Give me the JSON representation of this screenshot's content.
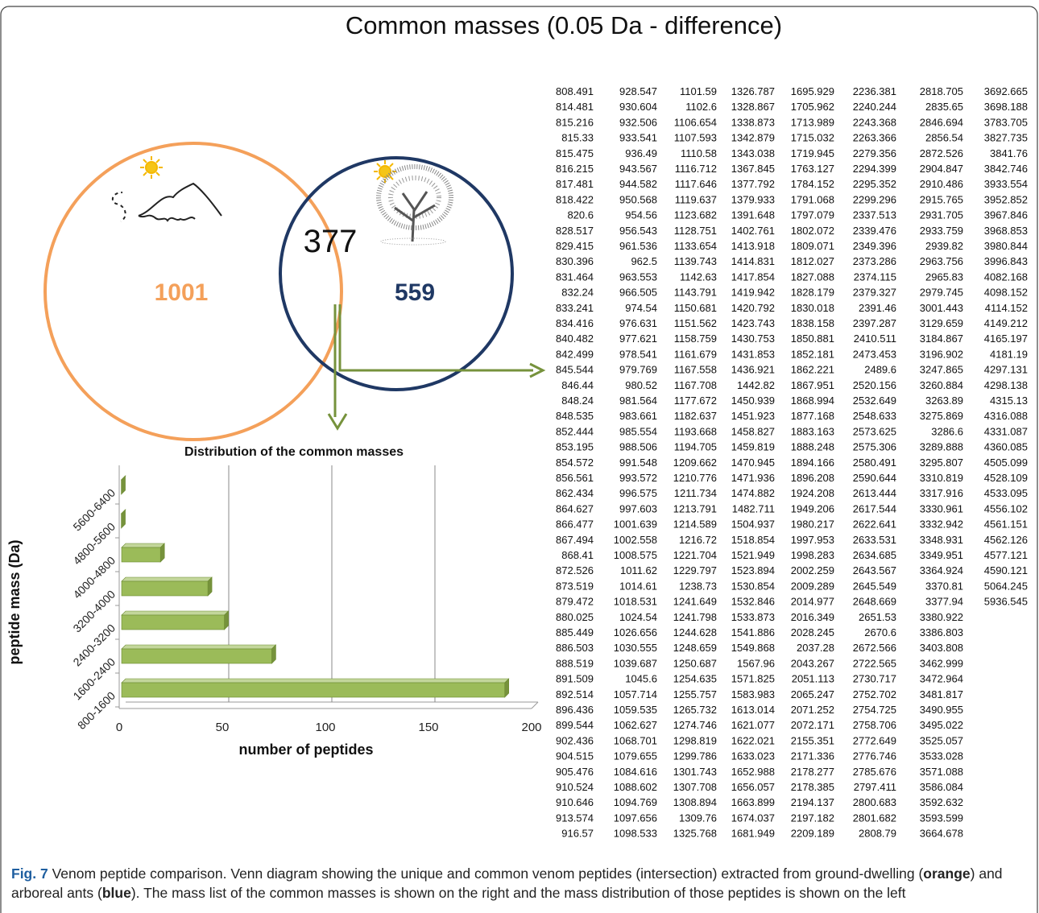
{
  "title": "Common masses (0.05 Da - difference)",
  "venn": {
    "left_count": 1001,
    "right_count": 559,
    "intersection_count": 377
  },
  "chart_data": {
    "type": "bar",
    "orientation": "horizontal",
    "title": "Distribution of the common masses",
    "x_label": "number of peptides",
    "y_label": "peptide mass (Da)",
    "categories": [
      "800-1600",
      "1600-2400",
      "2400-3200",
      "3200-4000",
      "4000-4800",
      "4800-5600",
      "5600-6400"
    ],
    "values": [
      187,
      74,
      51,
      43,
      20,
      1,
      1
    ],
    "color": "#9bbb59",
    "xlim": [
      0,
      200
    ],
    "xticks": [
      0,
      50,
      100,
      150,
      200
    ],
    "grid": true
  },
  "mass_table": {
    "columns": [
      [
        808.491,
        814.481,
        815.216,
        815.33,
        815.475,
        816.215,
        817.481,
        818.422,
        820.6,
        828.517,
        829.415,
        830.396,
        831.464,
        832.24,
        833.241,
        834.416,
        840.482,
        842.499,
        845.544,
        846.44,
        848.24,
        848.535,
        852.444,
        853.195,
        854.572,
        856.561,
        862.434,
        864.627,
        866.477,
        867.494,
        868.41,
        872.526,
        873.519,
        879.472,
        880.025,
        885.449,
        886.503,
        888.519,
        891.509,
        892.514,
        896.436,
        899.544,
        902.436,
        904.515,
        905.476,
        910.524,
        910.646,
        913.574,
        916.57
      ],
      [
        928.547,
        930.604,
        932.506,
        933.541,
        936.49,
        943.567,
        944.582,
        950.568,
        954.56,
        956.543,
        961.536,
        962.5,
        963.553,
        966.505,
        974.54,
        976.631,
        977.621,
        978.541,
        979.769,
        980.52,
        981.564,
        983.661,
        985.554,
        988.506,
        991.548,
        993.572,
        996.575,
        997.603,
        1001.639,
        1002.558,
        1008.575,
        1011.62,
        1014.61,
        1018.531,
        1024.54,
        1026.656,
        1030.555,
        1039.687,
        1045.6,
        1057.714,
        1059.535,
        1062.627,
        1068.701,
        1079.655,
        1084.616,
        1088.602,
        1094.769,
        1097.656,
        1098.533
      ],
      [
        1101.59,
        1102.6,
        1106.654,
        1107.593,
        1110.58,
        1116.712,
        1117.646,
        1119.637,
        1123.682,
        1128.751,
        1133.654,
        1139.743,
        1142.63,
        1143.791,
        1150.681,
        1151.562,
        1158.759,
        1161.679,
        1167.558,
        1167.708,
        1177.672,
        1182.637,
        1193.668,
        1194.705,
        1209.662,
        1210.776,
        1211.734,
        1213.791,
        1214.589,
        1216.72,
        1221.704,
        1229.797,
        1238.73,
        1241.649,
        1241.798,
        1244.628,
        1248.659,
        1250.687,
        1254.635,
        1255.757,
        1265.732,
        1274.746,
        1298.819,
        1299.786,
        1301.743,
        1307.708,
        1308.894,
        1309.76,
        1325.768
      ],
      [
        1326.787,
        1328.867,
        1338.873,
        1342.879,
        1343.038,
        1367.845,
        1377.792,
        1379.933,
        1391.648,
        1402.761,
        1413.918,
        1414.831,
        1417.854,
        1419.942,
        1420.792,
        1423.743,
        1430.753,
        1431.853,
        1436.921,
        1442.82,
        1450.939,
        1451.923,
        1458.827,
        1459.819,
        1470.945,
        1471.936,
        1474.882,
        1482.711,
        1504.937,
        1518.854,
        1521.949,
        1523.894,
        1530.854,
        1532.846,
        1533.873,
        1541.886,
        1549.868,
        1567.96,
        1571.825,
        1583.983,
        1613.014,
        1621.077,
        1622.021,
        1633.023,
        1652.988,
        1656.057,
        1663.899,
        1674.037,
        1681.949
      ],
      [
        1695.929,
        1705.962,
        1713.989,
        1715.032,
        1719.945,
        1763.127,
        1784.152,
        1791.068,
        1797.079,
        1802.072,
        1809.071,
        1812.027,
        1827.088,
        1828.179,
        1830.018,
        1838.158,
        1850.881,
        1852.181,
        1862.221,
        1867.951,
        1868.994,
        1877.168,
        1883.163,
        1888.248,
        1894.166,
        1896.208,
        1924.208,
        1949.206,
        1980.217,
        1997.953,
        1998.283,
        2002.259,
        2009.289,
        2014.977,
        2016.349,
        2028.245,
        2037.28,
        2043.267,
        2051.113,
        2065.247,
        2071.252,
        2072.171,
        2155.351,
        2171.336,
        2178.277,
        2178.385,
        2194.137,
        2197.182,
        2209.189
      ],
      [
        2236.381,
        2240.244,
        2243.368,
        2263.366,
        2279.356,
        2294.399,
        2295.352,
        2299.296,
        2337.513,
        2339.476,
        2349.396,
        2373.286,
        2374.115,
        2379.327,
        2391.46,
        2397.287,
        2410.511,
        2473.453,
        2489.6,
        2520.156,
        2532.649,
        2548.633,
        2573.625,
        2575.306,
        2580.491,
        2590.644,
        2613.444,
        2617.544,
        2622.641,
        2633.531,
        2634.685,
        2643.567,
        2645.549,
        2648.669,
        2651.53,
        2670.6,
        2672.566,
        2722.565,
        2730.717,
        2752.702,
        2754.725,
        2758.706,
        2772.649,
        2776.746,
        2785.676,
        2797.411,
        2800.683,
        2801.682,
        2808.79
      ],
      [
        2818.705,
        2835.65,
        2846.694,
        2856.54,
        2872.526,
        2904.847,
        2910.486,
        2915.765,
        2931.705,
        2933.759,
        2939.82,
        2963.756,
        2965.83,
        2979.745,
        3001.443,
        3129.659,
        3184.867,
        3196.902,
        3247.865,
        3260.884,
        3263.89,
        3275.869,
        3286.6,
        3289.888,
        3295.807,
        3310.819,
        3317.916,
        3330.961,
        3332.942,
        3348.931,
        3349.951,
        3364.924,
        3370.81,
        3377.94,
        3380.922,
        3386.803,
        3403.808,
        3462.999,
        3472.964,
        3481.817,
        3490.955,
        3495.022,
        3525.057,
        3533.028,
        3571.088,
        3586.084,
        3592.632,
        3593.599,
        3664.678
      ],
      [
        3692.665,
        3698.188,
        3783.705,
        3827.735,
        3841.76,
        3842.746,
        3933.554,
        3952.852,
        3967.846,
        3968.853,
        3980.844,
        3996.843,
        4082.168,
        4098.152,
        4114.152,
        4149.212,
        4165.197,
        4181.19,
        4297.131,
        4298.138,
        4315.13,
        4316.088,
        4331.087,
        4360.085,
        4505.099,
        4528.109,
        4533.095,
        4556.102,
        4561.151,
        4562.126,
        4577.121,
        4590.121,
        5064.245,
        5936.545
      ]
    ]
  },
  "caption": {
    "label": "Fig. 7",
    "text_1": " Venom peptide comparison. Venn diagram showing the unique and common venom peptides (intersection) extracted from ground-dwelling (",
    "bold_1": "orange",
    "text_2": ") and arboreal ants (",
    "bold_2": "blue",
    "text_3": "). The mass list of the common masses is shown on the right and the mass distribution of those peptides is shown on the left"
  }
}
